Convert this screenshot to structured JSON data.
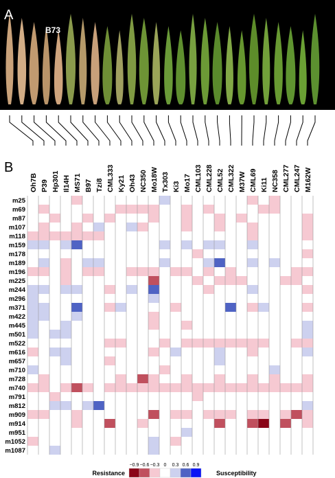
{
  "chart_data": {
    "type": "heatmap",
    "panel_a_label": "A",
    "photo_label": "B73",
    "panel_b_label": "B",
    "categories": [
      "Oh7B",
      "P39",
      "Hp301",
      "Il14H",
      "MS71",
      "B97",
      "Tzi8",
      "CML333",
      "Ky21",
      "Oh43",
      "NC350",
      "Mo18W",
      "Tx303",
      "Ki3",
      "Mo17",
      "CML103",
      "CML228",
      "CML52",
      "CML322",
      "M37W",
      "CML69",
      "Ki11",
      "NC358",
      "CML277",
      "CML247",
      "M162W"
    ],
    "rows": [
      "m25",
      "m69",
      "m87",
      "m107",
      "m118",
      "m159",
      "m178",
      "m189",
      "m196",
      "m225",
      "m244",
      "m296",
      "m371",
      "m422",
      "m445",
      "m501",
      "m522",
      "m616",
      "m657",
      "m710",
      "m728",
      "m740",
      "m791",
      "m812",
      "m909",
      "m914",
      "m951",
      "m1052",
      "m1087"
    ],
    "values": [
      [
        0,
        0,
        0,
        0,
        -0.3,
        0,
        0,
        0,
        0,
        0,
        0,
        0,
        0.3,
        0,
        0,
        0,
        0,
        0,
        0,
        0,
        -0.3,
        0,
        -0.3,
        0,
        0,
        0
      ],
      [
        0,
        -0.3,
        0,
        0,
        0,
        0,
        0,
        0,
        -0.3,
        -0.3,
        -0.3,
        -0.3,
        0,
        0,
        -0.3,
        0,
        -0.3,
        0,
        0,
        0,
        0,
        -0.3,
        -0.3,
        0,
        0,
        0
      ],
      [
        0,
        0,
        -0.3,
        0,
        0,
        -0.3,
        0,
        -0.3,
        0,
        0,
        0,
        -0.3,
        0,
        0,
        -0.3,
        0,
        0,
        -0.3,
        0,
        -0.3,
        0,
        0,
        0,
        0,
        0,
        -0.3
      ],
      [
        0,
        -0.3,
        0,
        0,
        -0.3,
        0,
        0.3,
        0,
        0,
        0.3,
        -0.3,
        0,
        0,
        0,
        -0.3,
        0,
        0,
        -0.3,
        0,
        0,
        -0.3,
        0,
        0,
        0,
        0,
        -0.3
      ],
      [
        -0.3,
        -0.3,
        -0.3,
        -0.3,
        -0.3,
        -0.3,
        -0.3,
        0,
        0,
        0,
        0,
        0,
        0,
        0,
        0,
        0,
        0,
        0,
        0,
        0,
        -0.3,
        0,
        0,
        0,
        0,
        -0.3
      ],
      [
        0.3,
        0.3,
        0,
        0.3,
        0.6,
        0,
        0,
        0,
        0,
        0,
        0,
        0,
        0.3,
        0,
        0.3,
        0,
        0.3,
        0.3,
        0,
        0,
        0.3,
        0,
        0,
        0,
        0,
        0
      ],
      [
        0,
        0,
        0,
        0,
        0,
        0,
        0,
        0,
        0,
        0,
        0,
        0,
        0,
        0,
        0,
        -0.3,
        0,
        0,
        0,
        0,
        0,
        0,
        0,
        0,
        0,
        -0.3
      ],
      [
        0,
        0.3,
        0,
        -0.3,
        0,
        0.3,
        0.3,
        0,
        0,
        0,
        0,
        0,
        0.3,
        0,
        0,
        0,
        0.3,
        0.6,
        0,
        0,
        0.3,
        0,
        0.3,
        0,
        0,
        0
      ],
      [
        -0.3,
        -0.3,
        0,
        -0.3,
        0,
        -0.3,
        -0.3,
        0,
        0,
        -0.3,
        -0.3,
        -0.3,
        0,
        -0.3,
        -0.3,
        0,
        -0.3,
        0,
        -0.3,
        0,
        0,
        0,
        0,
        0,
        -0.3,
        -0.3
      ],
      [
        0,
        0,
        0,
        -0.3,
        0,
        0,
        0,
        0,
        0,
        0,
        0,
        -0.6,
        0,
        0,
        0,
        -0.3,
        0,
        -0.3,
        -0.3,
        -0.3,
        0,
        0,
        0,
        -0.3,
        -0.3,
        0
      ],
      [
        0.3,
        0.3,
        0,
        0.3,
        0.3,
        0,
        0,
        -0.3,
        0,
        0.3,
        0,
        0.6,
        0,
        0,
        0,
        0,
        -0.3,
        0,
        0,
        0,
        0.3,
        0,
        0,
        0,
        0,
        -0.3
      ],
      [
        0.3,
        0,
        0,
        0,
        0,
        0,
        0,
        0,
        0,
        0,
        0,
        0.3,
        0,
        0,
        0,
        0,
        0,
        0,
        0,
        0,
        0,
        0,
        0,
        0,
        0,
        0
      ],
      [
        0.3,
        0.3,
        0,
        0,
        0.6,
        0,
        0,
        -0.3,
        0.3,
        0,
        0,
        0,
        0,
        -0.3,
        0,
        0,
        0,
        0,
        0.6,
        0,
        -0.3,
        0.3,
        0,
        0,
        0,
        -0.3
      ],
      [
        0.3,
        0.3,
        0,
        0,
        0.3,
        0,
        0,
        0,
        0,
        0,
        0,
        -0.3,
        0,
        0,
        0,
        0,
        0,
        0,
        0,
        0,
        0,
        0,
        0,
        0,
        0,
        0
      ],
      [
        0.3,
        0,
        0,
        0.3,
        0,
        0,
        0,
        0,
        0,
        0,
        0,
        -0.3,
        0,
        0,
        -0.3,
        0,
        0,
        0,
        0,
        0,
        0,
        0,
        0,
        0,
        0,
        0.3
      ],
      [
        0.3,
        0,
        0.3,
        0.3,
        0,
        0,
        0,
        0,
        0,
        0,
        0,
        0,
        0,
        0,
        0,
        0,
        0,
        0,
        0,
        0,
        0,
        0,
        0,
        0,
        0,
        0.3
      ],
      [
        0,
        0,
        0,
        0,
        0,
        0,
        0,
        -0.3,
        -0.3,
        0,
        0,
        0,
        -0.3,
        0,
        -0.3,
        -0.3,
        -0.3,
        -0.3,
        -0.3,
        -0.3,
        -0.3,
        -0.3,
        0,
        0,
        -0.3,
        -0.3
      ],
      [
        -0.3,
        0,
        0.3,
        0.3,
        0,
        0,
        0,
        0,
        0,
        0,
        0,
        -0.3,
        0,
        0.3,
        0,
        0,
        0,
        0.3,
        0,
        0,
        -0.3,
        0,
        0,
        0,
        0,
        0.3
      ],
      [
        0,
        0,
        0,
        0.3,
        0,
        0,
        0,
        -0.3,
        0,
        0,
        0,
        0,
        0,
        0,
        0,
        0,
        0,
        0.3,
        0,
        0,
        0,
        0,
        0,
        0,
        0,
        0
      ],
      [
        0.3,
        0,
        0,
        0,
        0,
        0,
        0,
        0,
        0,
        0,
        0,
        0,
        -0.3,
        0,
        0,
        0,
        0,
        0,
        0,
        0,
        0,
        0,
        0.3,
        0,
        0,
        0
      ],
      [
        0,
        -0.3,
        0,
        0,
        0,
        0,
        0,
        0,
        -0.3,
        0,
        -0.6,
        -0.3,
        0,
        0,
        -0.3,
        0,
        0,
        -0.3,
        0,
        0,
        -0.3,
        0,
        -0.3,
        0,
        0,
        -0.3
      ],
      [
        -0.3,
        -0.3,
        0,
        -0.3,
        -0.6,
        -0.3,
        0,
        -0.3,
        -0.3,
        -0.3,
        -0.3,
        -0.3,
        -0.3,
        -0.3,
        -0.3,
        -0.3,
        -0.3,
        -0.3,
        -0.3,
        -0.3,
        -0.3,
        -0.3,
        -0.3,
        -0.3,
        -0.3,
        -0.3
      ],
      [
        0,
        0,
        -0.3,
        0,
        0,
        0,
        0,
        0,
        0,
        0,
        0,
        0,
        0,
        0,
        0,
        -0.3,
        0,
        0,
        0,
        0,
        0,
        0,
        0,
        0,
        0,
        0
      ],
      [
        0,
        0,
        0.3,
        0.3,
        0,
        0.3,
        0.6,
        0,
        0,
        0,
        0,
        0,
        0,
        0,
        0,
        0,
        0,
        0,
        0,
        0,
        0,
        0,
        0,
        0,
        0,
        0.3
      ],
      [
        -0.3,
        -0.3,
        0,
        0,
        -0.3,
        0,
        0,
        0,
        0,
        0,
        0,
        -0.6,
        0,
        -0.3,
        -0.3,
        0,
        -0.3,
        -0.3,
        -0.3,
        0,
        -0.3,
        -0.3,
        0,
        -0.3,
        -0.6,
        -0.3
      ],
      [
        0,
        0,
        0,
        0,
        -0.3,
        0,
        0,
        -0.6,
        0,
        0,
        -0.3,
        0,
        0,
        0,
        0,
        0,
        0,
        -0.6,
        0,
        0,
        -0.6,
        -0.9,
        0,
        -0.6,
        0,
        -0.3
      ],
      [
        0,
        0,
        0,
        0,
        0,
        0,
        0,
        0,
        0,
        0,
        0,
        0,
        0,
        0,
        0.3,
        0,
        0,
        0,
        0,
        0,
        0,
        0,
        0,
        0,
        0,
        0
      ],
      [
        -0.3,
        0,
        0,
        0,
        0,
        0,
        0,
        0,
        0,
        0,
        0,
        0.3,
        0,
        -0.3,
        0,
        0,
        0,
        0,
        0,
        0,
        0,
        0,
        0,
        0,
        0,
        0
      ],
      [
        0,
        0,
        0.3,
        0,
        0,
        0,
        0,
        0,
        0,
        0,
        0,
        0.3,
        0,
        0,
        0,
        0,
        0,
        0,
        0,
        0,
        0,
        0,
        0,
        0,
        0,
        0
      ]
    ],
    "legend": {
      "left_label": "Resistance",
      "right_label": "Susceptibility",
      "ticks": [
        {
          "value": -0.9,
          "label": "−0.9"
        },
        {
          "value": -0.6,
          "label": "−0.6"
        },
        {
          "value": -0.3,
          "label": "−0.3"
        },
        0,
        0.3,
        0.6,
        0.9
      ],
      "colors": [
        "#8a0618",
        "#c0505e",
        "#f6c9d2",
        "#ffffff",
        "#cdd1ef",
        "#4f63c4",
        "#0a14f5"
      ]
    }
  }
}
